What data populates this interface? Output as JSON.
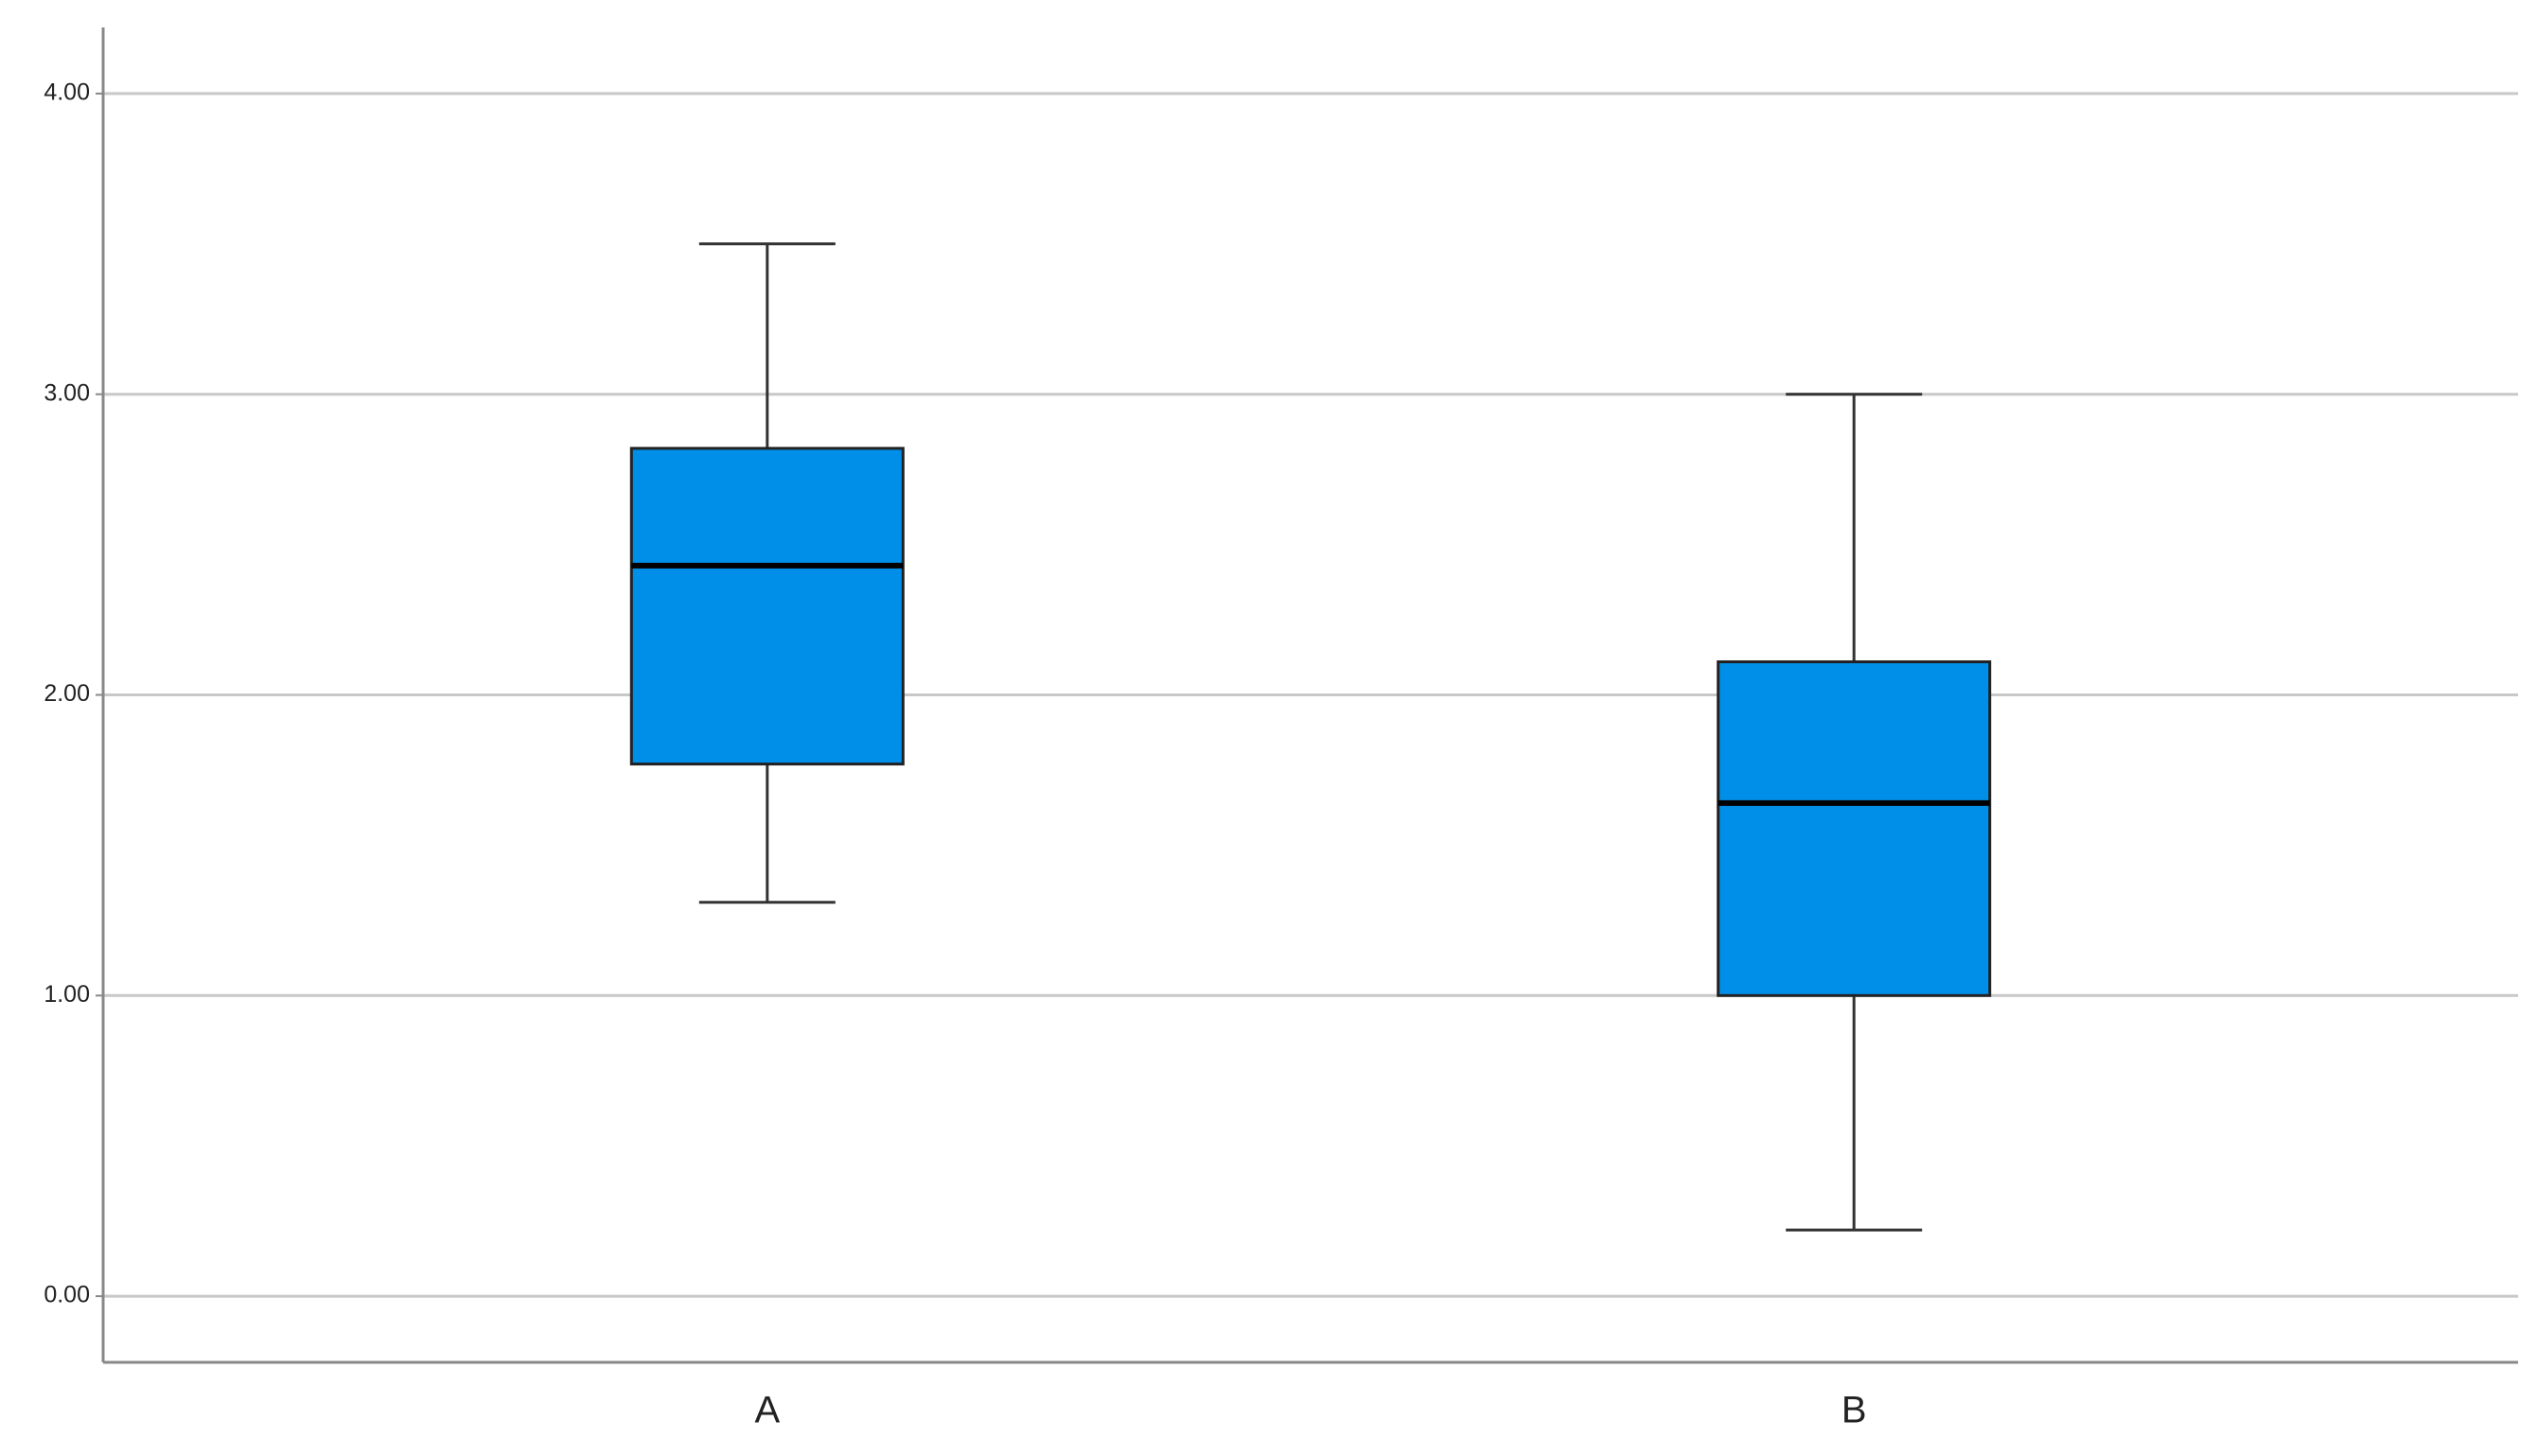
{
  "chart_data": {
    "type": "box",
    "categories": [
      "A",
      "B"
    ],
    "color": "#008fe8",
    "boxes": [
      {
        "min": 1.31,
        "q1": 1.77,
        "median": 2.43,
        "q3": 2.82,
        "max": 3.5
      },
      {
        "min": 0.22,
        "q1": 1.0,
        "median": 1.64,
        "q3": 2.11,
        "max": 3.0
      }
    ],
    "ylim": [
      -0.22,
      4.22
    ],
    "yticks": [
      {
        "value": 0,
        "label": "0.00"
      },
      {
        "value": 1,
        "label": "1.00"
      },
      {
        "value": 2,
        "label": "2.00"
      },
      {
        "value": 3,
        "label": "3.00"
      },
      {
        "value": 4,
        "label": "4.00"
      }
    ],
    "grid": true
  }
}
